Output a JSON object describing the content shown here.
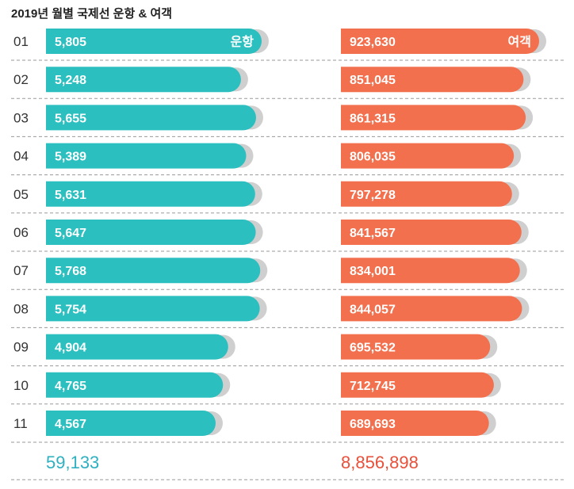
{
  "chart_data": {
    "type": "bar",
    "title": "2019년 월별 국제선 운항 & 여객",
    "categories": [
      "01",
      "02",
      "03",
      "04",
      "05",
      "06",
      "07",
      "08",
      "09",
      "10",
      "11"
    ],
    "series": [
      {
        "name": "운항",
        "values": [
          5805,
          5248,
          5655,
          5389,
          5631,
          5647,
          5768,
          5754,
          4904,
          4765,
          4567
        ],
        "labels": [
          "5,805",
          "5,248",
          "5,655",
          "5,389",
          "5,631",
          "5,647",
          "5,768",
          "5,754",
          "4,904",
          "4,765",
          "4,567"
        ],
        "total_label": "59,133",
        "color": "#2bbfbf",
        "total_color": "#2fb0c0"
      },
      {
        "name": "여객",
        "values": [
          923630,
          851045,
          861315,
          806035,
          797278,
          841567,
          834001,
          844057,
          695532,
          712745,
          689693
        ],
        "labels": [
          "923,630",
          "851,045",
          "861,315",
          "806,035",
          "797,278",
          "841,567",
          "834,001",
          "844,057",
          "695,532",
          "712,745",
          "689,693"
        ],
        "total_label": "8,856,898",
        "color": "#f2704e",
        "total_color": "#e8503a"
      }
    ],
    "shadow_color": "#cfcfcf",
    "grid": false,
    "legend": "inline"
  }
}
